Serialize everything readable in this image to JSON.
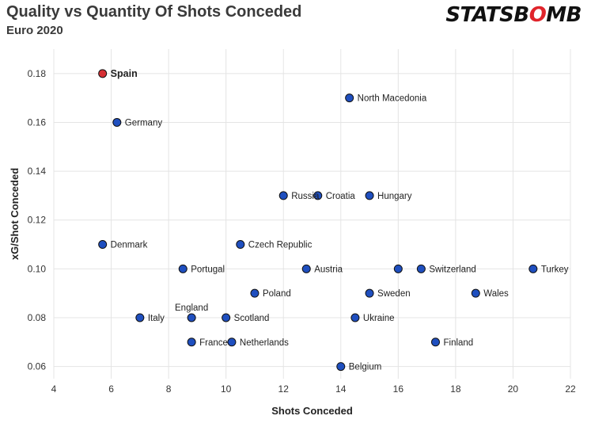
{
  "header": {
    "title": "Quality vs Quantity Of Shots Conceded",
    "subtitle": "Euro 2020",
    "brand_a": "STATSB",
    "brand_b": "O",
    "brand_c": "MB"
  },
  "colors": {
    "point": "#1f4fbf",
    "highlight": "#d62f34",
    "grid": "#e4e4e4",
    "brand_accent": "#e0242b"
  },
  "chart_data": {
    "type": "scatter",
    "xlabel": "Shots Conceded",
    "ylabel": "xG/Shot Conceded",
    "xlim": [
      4,
      22
    ],
    "ylim": [
      0.055,
      0.19
    ],
    "xticks": [
      4,
      6,
      8,
      10,
      12,
      14,
      16,
      18,
      20,
      22
    ],
    "yticks": [
      0.06,
      0.08,
      0.1,
      0.12,
      0.14,
      0.16,
      0.18
    ],
    "ytick_labels": [
      "0.06",
      "0.08",
      "0.10",
      "0.12",
      "0.14",
      "0.16",
      "0.18"
    ],
    "grid": true,
    "points": [
      {
        "label": "Spain",
        "x": 5.7,
        "y": 0.18,
        "highlight": true
      },
      {
        "label": "North Macedonia",
        "x": 14.3,
        "y": 0.17
      },
      {
        "label": "Germany",
        "x": 6.2,
        "y": 0.16
      },
      {
        "label": "Russia",
        "x": 12.0,
        "y": 0.13
      },
      {
        "label": "Croatia",
        "x": 13.2,
        "y": 0.13
      },
      {
        "label": "Hungary",
        "x": 15.0,
        "y": 0.13
      },
      {
        "label": "Denmark",
        "x": 5.7,
        "y": 0.11
      },
      {
        "label": "Czech Republic",
        "x": 10.5,
        "y": 0.11
      },
      {
        "label": "Portugal",
        "x": 8.5,
        "y": 0.1
      },
      {
        "label": "Austria",
        "x": 12.8,
        "y": 0.1
      },
      {
        "label": "",
        "x": 16.0,
        "y": 0.1
      },
      {
        "label": "Switzerland",
        "x": 16.8,
        "y": 0.1
      },
      {
        "label": "Turkey",
        "x": 20.7,
        "y": 0.1
      },
      {
        "label": "Poland",
        "x": 11.0,
        "y": 0.09
      },
      {
        "label": "Sweden",
        "x": 15.0,
        "y": 0.09
      },
      {
        "label": "Wales",
        "x": 18.7,
        "y": 0.09
      },
      {
        "label": "Italy",
        "x": 7.0,
        "y": 0.08
      },
      {
        "label": "England",
        "x": 8.8,
        "y": 0.08,
        "label_pos": "above"
      },
      {
        "label": "Scotland",
        "x": 10.0,
        "y": 0.08
      },
      {
        "label": "Ukraine",
        "x": 14.5,
        "y": 0.08
      },
      {
        "label": "France",
        "x": 8.8,
        "y": 0.07
      },
      {
        "label": "Netherlands",
        "x": 10.2,
        "y": 0.07
      },
      {
        "label": "Finland",
        "x": 17.3,
        "y": 0.07
      },
      {
        "label": "Belgium",
        "x": 14.0,
        "y": 0.06
      }
    ]
  }
}
